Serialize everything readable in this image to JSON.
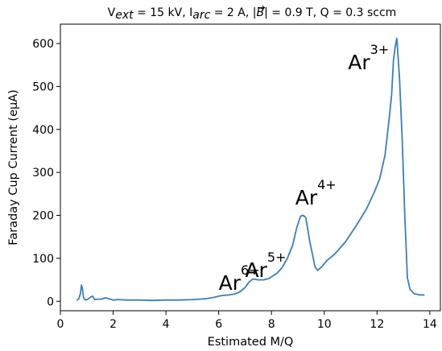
{
  "chart_data": {
    "type": "line",
    "title": {
      "parts": [
        {
          "text": "V",
          "style": "normal"
        },
        {
          "text": "ext",
          "style": "sub-italic"
        },
        {
          "text": " = 15 kV, I",
          "style": "normal"
        },
        {
          "text": "arc",
          "style": "sub-italic"
        },
        {
          "text": " = 2 A, |",
          "style": "normal"
        },
        {
          "text": "B",
          "style": "vector"
        },
        {
          "text": "| =  0.9 T, Q = 0.3 sccm",
          "style": "normal"
        }
      ]
    },
    "xlabel": "Estimated M/Q",
    "ylabel": "Faraday Cup Current (eμA)",
    "xlim": [
      0,
      14.4
    ],
    "ylim": [
      -22,
      645
    ],
    "xticks": [
      0,
      2,
      4,
      6,
      8,
      10,
      12,
      14
    ],
    "yticks": [
      0,
      100,
      200,
      300,
      400,
      500,
      600
    ],
    "grid": false,
    "line_color": "#3a7fb8",
    "series": [
      {
        "x": [
          0.62,
          0.7,
          0.76,
          0.8,
          0.84,
          0.88,
          0.95,
          1.05,
          1.15,
          1.22,
          1.3,
          1.4,
          1.55,
          1.7,
          1.85,
          2.0,
          2.2,
          2.5,
          3.0,
          3.5,
          4.0,
          4.5,
          5.0,
          5.5,
          5.8,
          6.0,
          6.2,
          6.4,
          6.6,
          6.8,
          7.0,
          7.15,
          7.3,
          7.5,
          7.7,
          7.9,
          8.2,
          8.4,
          8.6,
          8.8,
          8.95,
          9.1,
          9.2,
          9.3,
          9.38,
          9.45,
          9.55,
          9.65,
          9.75,
          9.9,
          10.1,
          10.4,
          10.8,
          11.2,
          11.6,
          11.9,
          12.1,
          12.3,
          12.45,
          12.55,
          12.62,
          12.68,
          12.75,
          12.85,
          12.95,
          13.05,
          13.15,
          13.25,
          13.4,
          13.6,
          13.8
        ],
        "y": [
          2,
          6,
          18,
          38,
          28,
          8,
          3,
          5,
          10,
          12,
          4,
          5,
          5,
          8,
          6,
          3,
          4,
          3,
          3,
          2,
          3,
          3,
          4,
          6,
          9,
          12,
          14,
          15,
          17,
          22,
          32,
          45,
          52,
          50,
          50,
          53,
          65,
          78,
          100,
          130,
          170,
          198,
          200,
          195,
          165,
          140,
          110,
          80,
          72,
          80,
          95,
          110,
          138,
          175,
          215,
          255,
          285,
          340,
          420,
          480,
          560,
          590,
          612,
          520,
          380,
          200,
          55,
          28,
          18,
          15,
          15
        ]
      }
    ],
    "annotations": [
      {
        "text": "Ar",
        "charge": "6+",
        "x": 6.0,
        "y": 27
      },
      {
        "text": "Ar",
        "charge": "5+",
        "x": 7.0,
        "y": 57
      },
      {
        "text": "Ar",
        "charge": "4+",
        "x": 8.9,
        "y": 225
      },
      {
        "text": "Ar",
        "charge": "3+",
        "x": 10.9,
        "y": 540
      }
    ]
  }
}
